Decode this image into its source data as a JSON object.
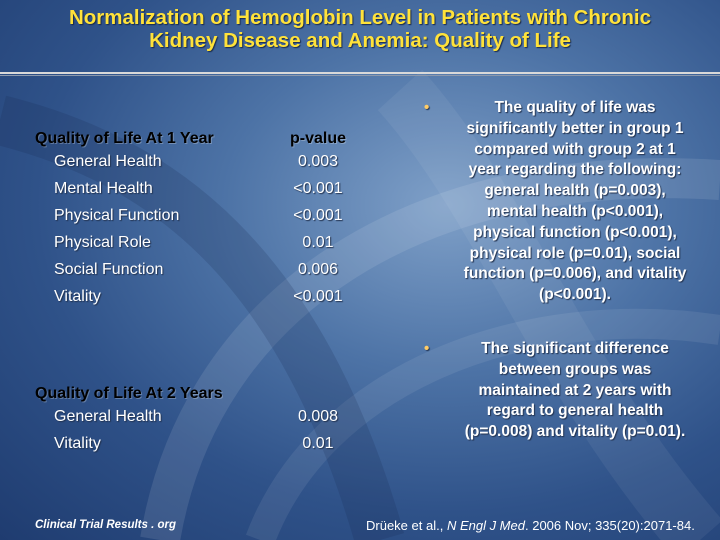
{
  "title_line1": "Normalization of Hemoglobin Level in Patients with Chronic",
  "title_line2": "Kidney Disease and Anemia: Quality of Life",
  "table1": {
    "header_label": "Quality of Life At 1 Year",
    "header_value": "p-value",
    "rows": [
      {
        "label": "General Health",
        "value": "0.003"
      },
      {
        "label": "Mental Health",
        "value": "<0.001"
      },
      {
        "label": "Physical Function",
        "value": "<0.001"
      },
      {
        "label": "Physical Role",
        "value": "0.01"
      },
      {
        "label": "Social Function",
        "value": "0.006"
      },
      {
        "label": "Vitality",
        "value": "<0.001"
      }
    ]
  },
  "table2": {
    "header_label": "Quality of Life At 2 Years",
    "rows": [
      {
        "label": "General Health",
        "value": "0.008"
      },
      {
        "label": "Vitality",
        "value": "0.01"
      }
    ]
  },
  "bullets": [
    "The quality of life was significantly better in group 1 compared with group 2 at 1 year regarding the following: general health (p=0.003), mental health (p<0.001), physical function (p<0.001), physical role (p=0.01), social function (p=0.006), and vitality (p<0.001).",
    "The significant difference between groups was maintained at 2 years with regard to general health (p=0.008) and vitality (p=0.01)."
  ],
  "bullet_lines": [
    [
      "The quality of life was",
      "significantly better in group 1",
      "compared with group 2 at 1",
      "year regarding the following:",
      "general health (p=0.003),",
      "mental health (p<0.001),",
      "physical function (p<0.001),",
      "physical role (p=0.01), social",
      "function (p=0.006), and vitality",
      "(p<0.001)."
    ],
    [
      "The significant difference",
      "between groups was",
      "maintained at 2 years with",
      "regard to general health",
      "(p=0.008) and vitality (p=0.01)."
    ]
  ],
  "footer_left": "Clinical Trial Results . org",
  "footer_right_pre": "Drüeke et al., ",
  "footer_right_journal": "N Engl J Med",
  "footer_right_post": ". 2006 Nov; 335(20):2071-84.",
  "bullet_color": "#ffcc66",
  "title_color": "#ffe23a"
}
